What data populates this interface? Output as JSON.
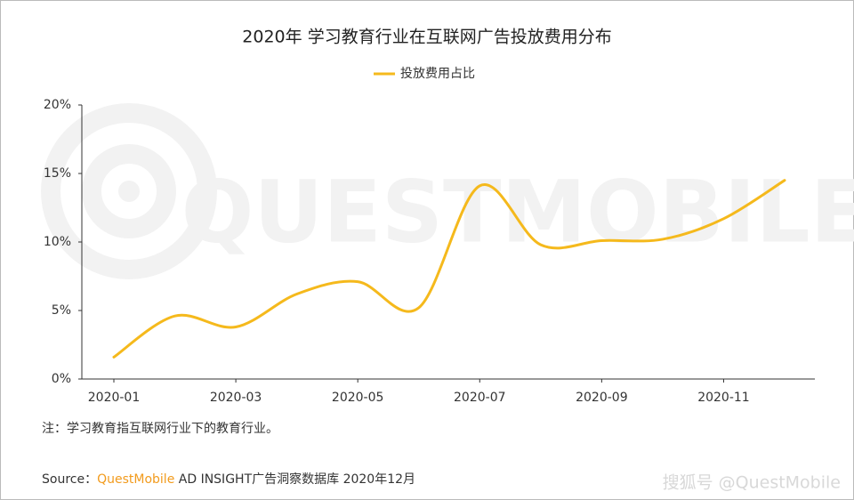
{
  "chart_data": {
    "type": "line",
    "title": "2020年 学习教育行业在互联网广告投放费用分布",
    "categories": [
      "2020-01",
      null,
      "2020-03",
      null,
      "2020-05",
      null,
      "2020-07",
      null,
      "2020-09",
      null,
      "2020-11",
      null
    ],
    "series": [
      {
        "name": "投放费用占比",
        "color": "#f5b91c",
        "values": [
          1.6,
          4.6,
          3.8,
          6.2,
          7.1,
          5.2,
          14.1,
          9.8,
          10.1,
          10.2,
          11.7,
          14.5
        ]
      }
    ],
    "ylim": [
      0,
      20
    ],
    "yticks": [
      {
        "value": 0,
        "label": "0%"
      },
      {
        "value": 5,
        "label": "5%"
      },
      {
        "value": 10,
        "label": "10%"
      },
      {
        "value": 15,
        "label": "15%"
      },
      {
        "value": 20,
        "label": "20%"
      }
    ],
    "grid": false,
    "smooth": true,
    "legend": "top",
    "note": "注：学习教育指互联网行业下的教育行业。",
    "source_prefix": "Source：",
    "source_brand": "QuestMobile",
    "source_rest": " AD INSIGHT广告洞察数据库 2020年12月",
    "watermark": "QUESTMOBILE",
    "credit": "搜狐号 @QuestMobile"
  }
}
